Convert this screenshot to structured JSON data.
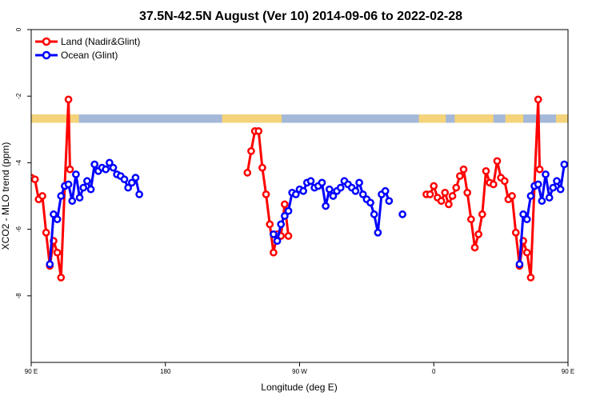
{
  "chart_data": {
    "type": "line",
    "title": "37.5N-42.5N August (Ver 10)   2014-09-06 to 2022-02-28",
    "xlabel": "Longitude (deg E)",
    "ylabel": "XCO2 - MLO trend (ppm)",
    "xlim": [
      90,
      450
    ],
    "ylim": [
      0,
      -10
    ],
    "x_ticks": [
      {
        "value": 90,
        "label": "90 E"
      },
      {
        "value": 180,
        "label": "180"
      },
      {
        "value": 270,
        "label": "90 W"
      },
      {
        "value": 360,
        "label": "0"
      },
      {
        "value": 450,
        "label": "90 E"
      },
      {
        "value": 540,
        "label": "180"
      }
    ],
    "y_ticks": [
      {
        "value": 0,
        "label": "0"
      },
      {
        "value": -2,
        "label": "-2"
      },
      {
        "value": -4,
        "label": "-4"
      },
      {
        "value": -6,
        "label": "-6"
      },
      {
        "value": -8,
        "label": "-8"
      }
    ],
    "legend_position": "top-left",
    "land_mask_band": {
      "y_range": [
        -2.55,
        -2.8
      ],
      "ocean_color": "#a4b8d8",
      "land_color": "#f5d37a",
      "land_intervals": [
        [
          90,
          122
        ],
        [
          218,
          258
        ],
        [
          350,
          368
        ],
        [
          374,
          400
        ],
        [
          408,
          420
        ],
        [
          442,
          450
        ]
      ]
    },
    "series": [
      {
        "name": "Land (Nadir&Glint)",
        "color": "#ff0000",
        "segments": [
          [
            [
              90,
              -4.45
            ],
            [
              92.5,
              -4.5
            ],
            [
              95,
              -5.1
            ],
            [
              97.5,
              -5.0
            ],
            [
              100,
              -6.1
            ],
            [
              102.5,
              -7.1
            ],
            [
              105,
              -6.35
            ],
            [
              107.5,
              -6.7
            ],
            [
              110,
              -7.45
            ],
            [
              112.5,
              -4.7
            ],
            [
              115,
              -2.1
            ],
            [
              116,
              -4.2
            ]
          ],
          [
            [
              235,
              -4.3
            ],
            [
              237.5,
              -3.65
            ],
            [
              240,
              -3.05
            ],
            [
              242.5,
              -3.05
            ],
            [
              245,
              -4.15
            ],
            [
              247.5,
              -4.95
            ],
            [
              250,
              -5.85
            ],
            [
              252.5,
              -6.7
            ],
            [
              255,
              -6.15
            ],
            [
              257.5,
              -6.2
            ],
            [
              260,
              -5.25
            ],
            [
              262.5,
              -6.2
            ]
          ],
          [
            [
              355,
              -4.95
            ],
            [
              357.5,
              -4.95
            ],
            [
              360,
              -4.7
            ],
            [
              362.5,
              -5.05
            ],
            [
              365,
              -5.15
            ],
            [
              367.5,
              -4.9
            ],
            [
              370,
              -5.25
            ],
            [
              372.5,
              -5.0
            ],
            [
              375,
              -4.75
            ],
            [
              377.5,
              -4.4
            ],
            [
              380,
              -4.2
            ],
            [
              382.5,
              -4.9
            ],
            [
              385,
              -5.7
            ],
            [
              387.5,
              -6.55
            ],
            [
              390,
              -6.15
            ],
            [
              392.5,
              -5.55
            ],
            [
              395,
              -4.25
            ],
            [
              397.5,
              -4.6
            ],
            [
              400,
              -4.65
            ],
            [
              402.5,
              -3.95
            ],
            [
              405,
              -4.45
            ],
            [
              407.5,
              -4.55
            ],
            [
              410,
              -5.1
            ],
            [
              412.5,
              -5.0
            ],
            [
              415,
              -6.1
            ],
            [
              417.5,
              -7.1
            ],
            [
              420,
              -6.35
            ],
            [
              422.5,
              -6.7
            ],
            [
              425,
              -7.45
            ],
            [
              427.5,
              -4.7
            ],
            [
              430,
              -2.1
            ],
            [
              431,
              -4.2
            ]
          ]
        ]
      },
      {
        "name": "Ocean (Glint)",
        "color": "#0000ff",
        "segments": [
          [
            [
              102.5,
              -7.05
            ],
            [
              105,
              -5.55
            ],
            [
              107.5,
              -5.7
            ],
            [
              110,
              -5.0
            ],
            [
              112.5,
              -4.7
            ],
            [
              115,
              -4.65
            ],
            [
              117.5,
              -5.15
            ],
            [
              120,
              -4.35
            ],
            [
              122.5,
              -5.05
            ],
            [
              125,
              -4.75
            ],
            [
              127.5,
              -4.55
            ],
            [
              130,
              -4.8
            ],
            [
              132.5,
              -4.05
            ],
            [
              135,
              -4.25
            ],
            [
              137.5,
              -4.15
            ],
            [
              140,
              -4.2
            ],
            [
              142.5,
              -4.0
            ],
            [
              145,
              -4.15
            ],
            [
              147.5,
              -4.35
            ],
            [
              150,
              -4.4
            ],
            [
              152.5,
              -4.5
            ],
            [
              155,
              -4.75
            ],
            [
              157.5,
              -4.6
            ],
            [
              160,
              -4.45
            ],
            [
              162.5,
              -4.95
            ]
          ],
          [
            [
              252.5,
              -6.15
            ],
            [
              255,
              -6.35
            ],
            [
              257.5,
              -5.85
            ],
            [
              260,
              -5.6
            ],
            [
              262.5,
              -5.45
            ],
            [
              265,
              -4.9
            ],
            [
              267.5,
              -4.95
            ],
            [
              270,
              -4.8
            ],
            [
              272.5,
              -4.85
            ],
            [
              275,
              -4.6
            ],
            [
              277.5,
              -4.55
            ],
            [
              280,
              -4.75
            ],
            [
              282.5,
              -4.7
            ],
            [
              285,
              -4.6
            ],
            [
              287.5,
              -5.3
            ],
            [
              290,
              -4.8
            ],
            [
              292.5,
              -5.0
            ],
            [
              295,
              -4.85
            ],
            [
              297.5,
              -4.75
            ],
            [
              300,
              -4.55
            ],
            [
              302.5,
              -4.65
            ],
            [
              305,
              -4.75
            ],
            [
              307.5,
              -4.85
            ],
            [
              310,
              -4.6
            ],
            [
              312.5,
              -4.95
            ],
            [
              315,
              -5.1
            ],
            [
              317.5,
              -5.2
            ],
            [
              320,
              -5.55
            ],
            [
              322.5,
              -6.1
            ],
            [
              325,
              -4.95
            ],
            [
              327.5,
              -4.85
            ],
            [
              330,
              -5.15
            ]
          ],
          [
            [
              339,
              -5.55
            ]
          ],
          [
            [
              417.5,
              -7.05
            ],
            [
              420,
              -5.55
            ],
            [
              422.5,
              -5.7
            ],
            [
              425,
              -5.0
            ],
            [
              427.5,
              -4.7
            ],
            [
              430,
              -4.65
            ],
            [
              432.5,
              -5.15
            ],
            [
              435,
              -4.35
            ],
            [
              437.5,
              -5.05
            ],
            [
              440,
              -4.75
            ],
            [
              442.5,
              -4.55
            ],
            [
              445,
              -4.8
            ],
            [
              447.5,
              -4.05
            ]
          ]
        ]
      }
    ]
  }
}
